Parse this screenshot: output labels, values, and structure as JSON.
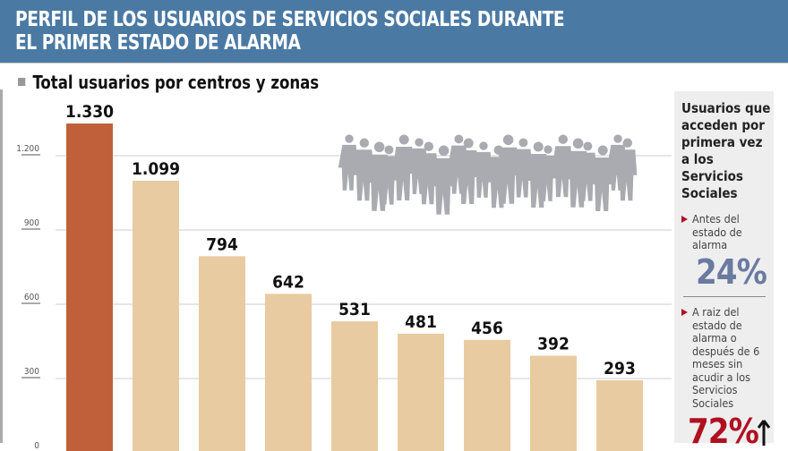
{
  "header": {
    "title_line1": "PERFIL DE LOS USUARIOS DE SERVICIOS SOCIALES DURANTE",
    "title_line2": "EL PRIMER ESTADO DE ALARMA"
  },
  "chart_data": {
    "type": "bar",
    "title": "Total usuarios por centros y zonas",
    "categories": [
      "",
      "",
      "",
      "",
      "",
      "",
      "",
      "",
      ""
    ],
    "values": [
      1330,
      1099,
      794,
      642,
      531,
      481,
      456,
      392,
      293
    ],
    "labels": [
      "1.330",
      "1.099",
      "794",
      "642",
      "531",
      "481",
      "456",
      "392",
      "293"
    ],
    "yticks": [
      0,
      300,
      600,
      900,
      1200
    ],
    "ytick_labels": [
      "0",
      "300",
      "600",
      "900",
      "1.200"
    ],
    "ylim": [
      0,
      1400
    ],
    "grid": true,
    "colors": {
      "highlight": "#c0603a",
      "bar": "#e8cba0",
      "grid": "#cccccc"
    }
  },
  "sidebar": {
    "title": "Usuarios que acceden por primera vez a los Servicios Sociales",
    "item1": {
      "text": "Antes del estado de alarma",
      "value": "24%",
      "color": "#6a7aa0"
    },
    "item2": {
      "text": "A raiz del estado de alarma o después de 6 meses sin acudir a los Servicios Sociales",
      "value": "72%",
      "color": "#b01020",
      "trend": "arrow-up-icon"
    }
  }
}
